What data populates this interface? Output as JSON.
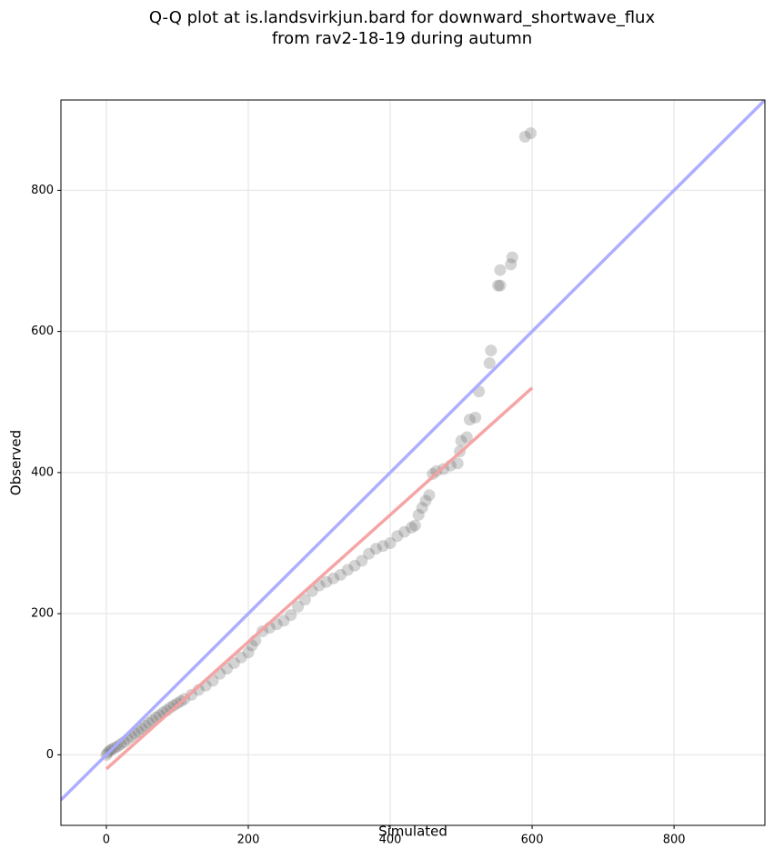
{
  "chart_data": {
    "type": "scatter",
    "title": [
      "Q-Q plot at is.landsvirkjun.bard for downward_shortwave_flux",
      "from rav2-18-19 during autumn"
    ],
    "x_label": "Simulated",
    "y_label": "Observed",
    "xlim": [
      -64,
      928
    ],
    "ylim": [
      -100,
      928
    ],
    "xticks": [
      0,
      200,
      400,
      600,
      800
    ],
    "yticks": [
      0,
      200,
      400,
      600,
      800
    ],
    "grid": true,
    "color": "#555555",
    "x": [
      0,
      2,
      5,
      8,
      12,
      16,
      20,
      25,
      30,
      35,
      40,
      45,
      50,
      55,
      60,
      65,
      70,
      75,
      80,
      85,
      90,
      95,
      100,
      105,
      110,
      120,
      130,
      140,
      150,
      160,
      170,
      180,
      190,
      200,
      205,
      210,
      220,
      230,
      240,
      250,
      260,
      270,
      280,
      290,
      300,
      310,
      320,
      330,
      340,
      350,
      360,
      370,
      380,
      390,
      400,
      410,
      420,
      430,
      435,
      440,
      445,
      450,
      455,
      460,
      465,
      475,
      485,
      495,
      498,
      500,
      508,
      512,
      520,
      525,
      540,
      542,
      552,
      555,
      555,
      570,
      572,
      590,
      598
    ],
    "values": [
      0,
      3,
      6,
      8,
      10,
      12,
      15,
      18,
      22,
      26,
      30,
      33,
      37,
      41,
      45,
      49,
      53,
      56,
      60,
      63,
      67,
      70,
      73,
      76,
      79,
      85,
      92,
      98,
      105,
      115,
      122,
      130,
      138,
      145,
      155,
      162,
      175,
      180,
      185,
      190,
      198,
      210,
      220,
      232,
      240,
      245,
      250,
      255,
      262,
      268,
      275,
      285,
      292,
      296,
      300,
      310,
      316,
      322,
      325,
      340,
      350,
      360,
      368,
      398,
      402,
      405,
      410,
      413,
      430,
      445,
      450,
      475,
      478,
      515,
      555,
      573,
      665,
      665,
      687,
      695,
      705,
      876,
      881
    ],
    "lines": [
      {
        "color": "#aaaaff",
        "x": [
          -64,
          928
        ],
        "y": [
          -64,
          928
        ]
      },
      {
        "color": "#f4a0a0",
        "x": [
          0,
          600
        ],
        "y": [
          -20,
          520
        ]
      }
    ]
  }
}
